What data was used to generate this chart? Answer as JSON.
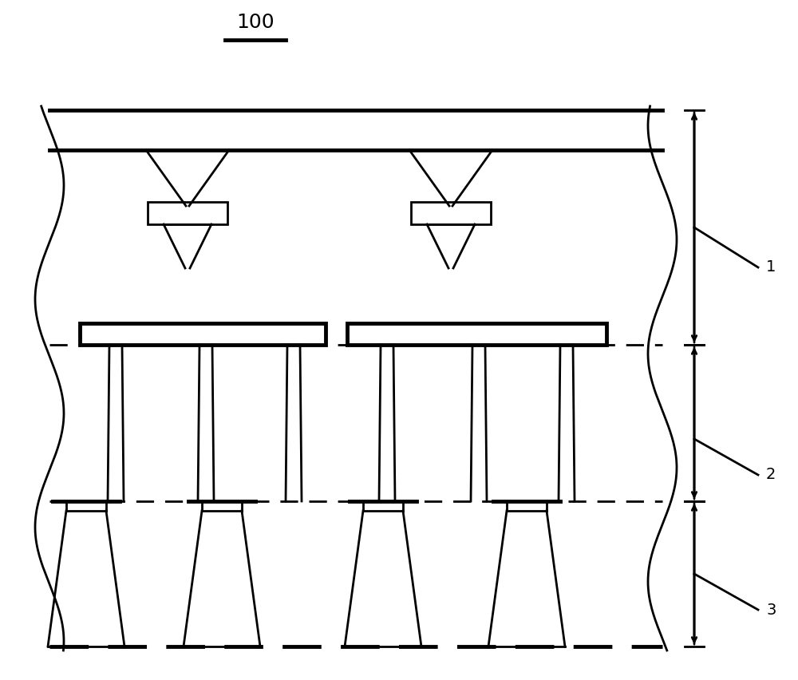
{
  "bg_color": "#ffffff",
  "line_color": "#000000",
  "label_100": "100",
  "label_1": "1",
  "label_2": "2",
  "label_3": "3",
  "figure_width": 10.0,
  "figure_height": 8.52
}
